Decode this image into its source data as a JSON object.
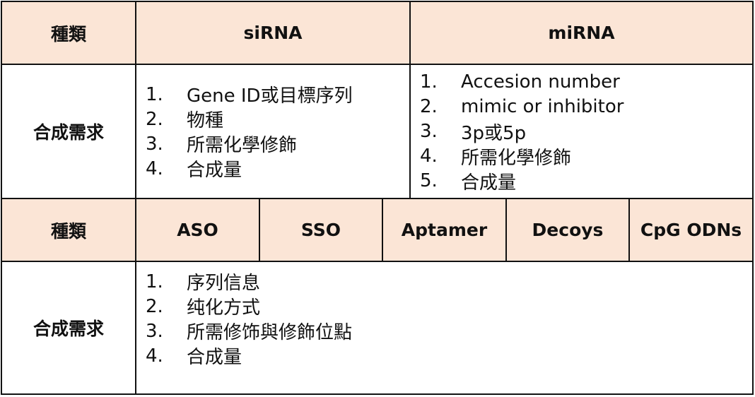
{
  "sections": [
    {
      "type_label": "種類",
      "types": [
        "siRNA",
        "miRNA"
      ],
      "needs_label": "合成需求",
      "needs": [
        [
          {
            "num": "1.",
            "text": "Gene ID或目標序列"
          },
          {
            "num": "2.",
            "text": "物種"
          },
          {
            "num": "3.",
            "text": "所需化學修飾"
          },
          {
            "num": "4.",
            "text": "合成量"
          }
        ],
        [
          {
            "num": "1.",
            "text": "Accesion number"
          },
          {
            "num": "2.",
            "text": "mimic or inhibitor"
          },
          {
            "num": "3.",
            "text": "3p或5p"
          },
          {
            "num": "4.",
            "text": "所需化學修飾"
          },
          {
            "num": "5.",
            "text": "合成量"
          }
        ]
      ]
    },
    {
      "type_label": "種類",
      "types": [
        "ASO",
        "SSO",
        "Aptamer",
        "Decoys",
        "CpG ODNs"
      ],
      "needs_label": "合成需求",
      "needs": [
        [
          {
            "num": "1.",
            "text": "序列信息"
          },
          {
            "num": "2.",
            "text": "纯化方式"
          },
          {
            "num": "3.",
            "text": "所需修饰與修飾位點"
          },
          {
            "num": "4.",
            "text": "合成量"
          }
        ]
      ]
    }
  ]
}
